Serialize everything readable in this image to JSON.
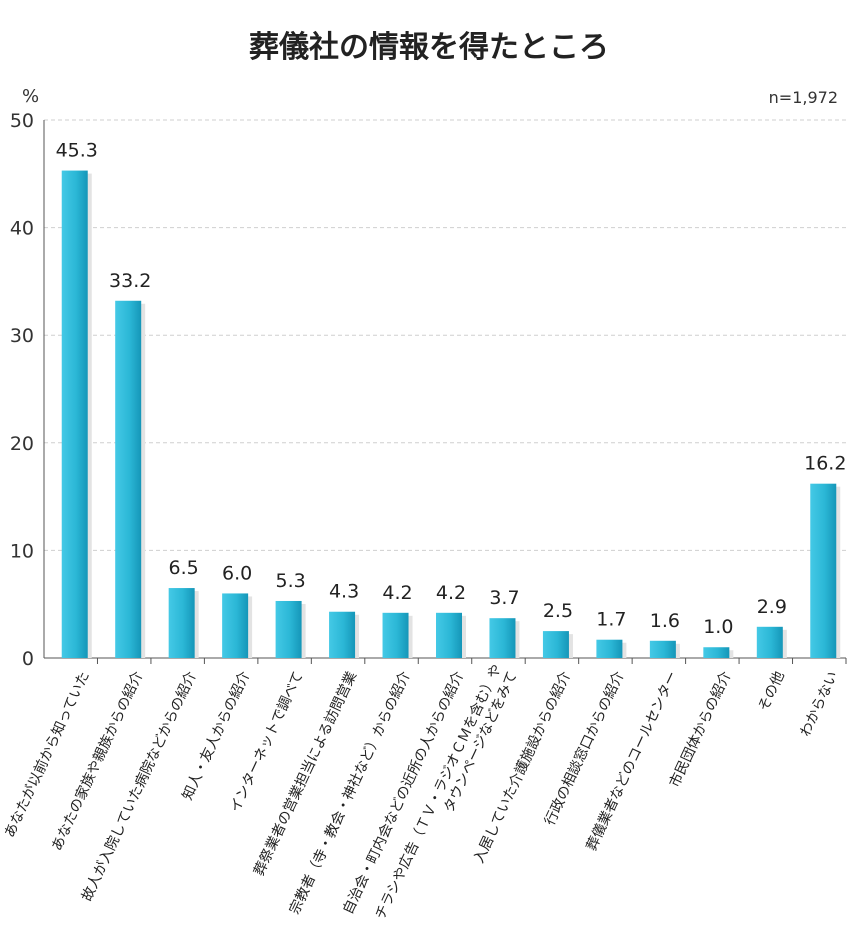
{
  "chart_data": {
    "type": "bar",
    "title": "葬儀社の情報を得たところ",
    "unit_label": "%",
    "n_label": "n=1,972",
    "ylim": [
      0,
      50
    ],
    "yticks": [
      "0",
      "10",
      "20",
      "30",
      "40",
      "50"
    ],
    "grid": true,
    "bar_color": "#2bb7d6",
    "categories": [
      [
        "あなたが以前から知っていた"
      ],
      [
        "あなたの家族や親族からの紹介"
      ],
      [
        "故人が入院していた病院などからの紹介"
      ],
      [
        "知人・友人からの紹介"
      ],
      [
        "インターネットで調べて"
      ],
      [
        "葬祭業者の営業担当による訪問営業"
      ],
      [
        "宗教者（寺・教会・神社など）からの紹介"
      ],
      [
        "自治会・町内会などの近所の人からの紹介"
      ],
      [
        "チラシや広告（ＴＶ・ラジオＣＭを含む）や",
        "タウンページなどをみて"
      ],
      [
        "入居していた介護施設からの紹介"
      ],
      [
        "行政の相談窓口からの紹介"
      ],
      [
        "葬儀業者などのコールセンター"
      ],
      [
        "市民団体からの紹介"
      ],
      [
        "その他"
      ],
      [
        "わからない"
      ]
    ],
    "values": [
      45.3,
      33.2,
      6.5,
      6.0,
      5.3,
      4.3,
      4.2,
      4.2,
      3.7,
      2.5,
      1.7,
      1.6,
      1.0,
      2.9,
      16.2
    ],
    "value_labels": [
      "45.3",
      "33.2",
      "6.5",
      "6.0",
      "5.3",
      "4.3",
      "4.2",
      "4.2",
      "3.7",
      "2.5",
      "1.7",
      "1.6",
      "1.0",
      "2.9",
      "16.2"
    ]
  }
}
